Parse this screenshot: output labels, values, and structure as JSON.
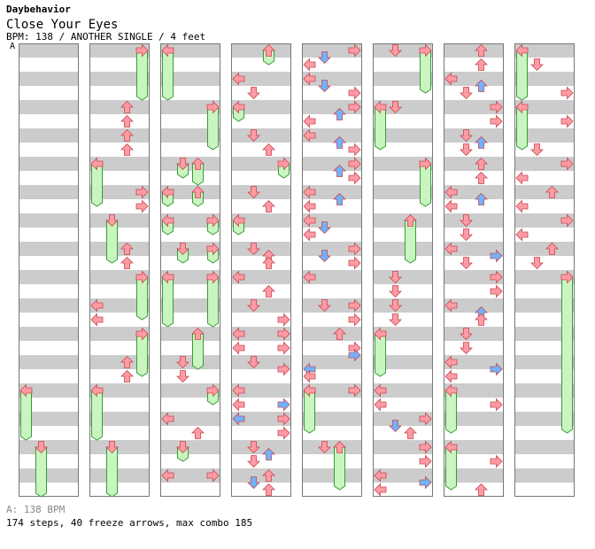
{
  "header": {
    "artist": "Daybehavior",
    "title": "Close Your Eyes",
    "info": "BPM: 138 / ANOTHER SINGLE / 4 feet",
    "marker": "A"
  },
  "footer": {
    "bpm": "A: 138 BPM",
    "stats": "174 steps, 40 freeze arrows, max combo 185"
  },
  "chart_data": {
    "type": "table",
    "lanes": [
      "left",
      "down",
      "up",
      "right"
    ],
    "beats_per_column": 32,
    "colors": {
      "quarter_note": "#ff9ba5",
      "sixteenth_note": "#6fb3ff",
      "freeze": "#c8f5c0",
      "stripe": "#cccccc"
    },
    "columns": [
      {
        "notes": [
          {
            "lane": 0,
            "beat": 24,
            "kind": "freeze",
            "end": 28
          },
          {
            "lane": 1,
            "beat": 28,
            "kind": "freeze",
            "end": 32
          }
        ]
      },
      {
        "notes": [
          {
            "lane": 3,
            "beat": 0,
            "kind": "freeze",
            "end": 4
          },
          {
            "lane": 2,
            "beat": 4
          },
          {
            "lane": 2,
            "beat": 5
          },
          {
            "lane": 2,
            "beat": 6
          },
          {
            "lane": 2,
            "beat": 7
          },
          {
            "lane": 0,
            "beat": 8,
            "kind": "freeze",
            "end": 11.5
          },
          {
            "lane": 3,
            "beat": 10
          },
          {
            "lane": 3,
            "beat": 11
          },
          {
            "lane": 1,
            "beat": 12,
            "kind": "freeze",
            "end": 15.5
          },
          {
            "lane": 2,
            "beat": 14
          },
          {
            "lane": 2,
            "beat": 15
          },
          {
            "lane": 3,
            "beat": 16,
            "kind": "freeze",
            "end": 19.5
          },
          {
            "lane": 0,
            "beat": 18
          },
          {
            "lane": 0,
            "beat": 19
          },
          {
            "lane": 3,
            "beat": 20,
            "kind": "freeze",
            "end": 23.5
          },
          {
            "lane": 2,
            "beat": 22
          },
          {
            "lane": 2,
            "beat": 23
          },
          {
            "lane": 0,
            "beat": 24,
            "kind": "freeze",
            "end": 28
          },
          {
            "lane": 1,
            "beat": 28,
            "kind": "freeze",
            "end": 32
          }
        ]
      },
      {
        "notes": [
          {
            "lane": 0,
            "beat": 0,
            "kind": "freeze",
            "end": 4
          },
          {
            "lane": 3,
            "beat": 4,
            "kind": "freeze",
            "end": 7.5
          },
          {
            "lane": 1,
            "beat": 8,
            "kind": "freeze",
            "end": 9.5
          },
          {
            "lane": 2,
            "beat": 8,
            "kind": "freeze",
            "end": 10
          },
          {
            "lane": 0,
            "beat": 10,
            "kind": "freeze",
            "end": 11.5
          },
          {
            "lane": 2,
            "beat": 10,
            "kind": "freeze",
            "end": 11.5
          },
          {
            "lane": 0,
            "beat": 12,
            "kind": "freeze",
            "end": 13.5
          },
          {
            "lane": 3,
            "beat": 12,
            "kind": "freeze",
            "end": 13.5
          },
          {
            "lane": 1,
            "beat": 14,
            "kind": "freeze",
            "end": 15.5
          },
          {
            "lane": 3,
            "beat": 14,
            "kind": "freeze",
            "end": 15.5
          },
          {
            "lane": 0,
            "beat": 16,
            "kind": "freeze",
            "end": 20
          },
          {
            "lane": 3,
            "beat": 16,
            "kind": "freeze",
            "end": 20
          },
          {
            "lane": 2,
            "beat": 20,
            "kind": "freeze",
            "end": 23
          },
          {
            "lane": 1,
            "beat": 22
          },
          {
            "lane": 1,
            "beat": 23
          },
          {
            "lane": 3,
            "beat": 24,
            "kind": "freeze",
            "end": 25.5
          },
          {
            "lane": 0,
            "beat": 26
          },
          {
            "lane": 2,
            "beat": 27
          },
          {
            "lane": 1,
            "beat": 28,
            "kind": "freeze",
            "end": 29.5
          },
          {
            "lane": 0,
            "beat": 30
          },
          {
            "lane": 3,
            "beat": 30
          }
        ]
      },
      {
        "notes": [
          {
            "lane": 2,
            "beat": 0,
            "kind": "freeze",
            "end": 1.5
          },
          {
            "lane": 0,
            "beat": 2
          },
          {
            "lane": 1,
            "beat": 3
          },
          {
            "lane": 0,
            "beat": 4,
            "kind": "freeze",
            "end": 5.5
          },
          {
            "lane": 1,
            "beat": 6
          },
          {
            "lane": 2,
            "beat": 7
          },
          {
            "lane": 3,
            "beat": 8,
            "kind": "freeze",
            "end": 9.5
          },
          {
            "lane": 1,
            "beat": 10
          },
          {
            "lane": 2,
            "beat": 11
          },
          {
            "lane": 0,
            "beat": 12,
            "kind": "freeze",
            "end": 13.5
          },
          {
            "lane": 1,
            "beat": 14
          },
          {
            "lane": 2,
            "beat": 14.5
          },
          {
            "lane": 2,
            "beat": 15
          },
          {
            "lane": 0,
            "beat": 16
          },
          {
            "lane": 2,
            "beat": 17
          },
          {
            "lane": 1,
            "beat": 18
          },
          {
            "lane": 3,
            "beat": 19
          },
          {
            "lane": 0,
            "beat": 20
          },
          {
            "lane": 3,
            "beat": 20
          },
          {
            "lane": 0,
            "beat": 21
          },
          {
            "lane": 3,
            "beat": 21
          },
          {
            "lane": 1,
            "beat": 22
          },
          {
            "lane": 3,
            "beat": 22.5
          },
          {
            "lane": 0,
            "beat": 24
          },
          {
            "lane": 0,
            "beat": 25
          },
          {
            "lane": 3,
            "beat": 25,
            "sub": "16th"
          },
          {
            "lane": 0,
            "beat": 26,
            "sub": "16th"
          },
          {
            "lane": 3,
            "beat": 26
          },
          {
            "lane": 3,
            "beat": 27
          },
          {
            "lane": 1,
            "beat": 28
          },
          {
            "lane": 2,
            "beat": 28.5,
            "sub": "16th"
          },
          {
            "lane": 1,
            "beat": 29
          },
          {
            "lane": 2,
            "beat": 30
          },
          {
            "lane": 1,
            "beat": 30.5,
            "sub": "16th"
          },
          {
            "lane": 2,
            "beat": 31
          }
        ]
      },
      {
        "notes": [
          {
            "lane": 3,
            "beat": 0
          },
          {
            "lane": 1,
            "beat": 0.5,
            "sub": "16th"
          },
          {
            "lane": 0,
            "beat": 1
          },
          {
            "lane": 0,
            "beat": 2
          },
          {
            "lane": 1,
            "beat": 2.5,
            "sub": "16th"
          },
          {
            "lane": 3,
            "beat": 3
          },
          {
            "lane": 3,
            "beat": 4
          },
          {
            "lane": 2,
            "beat": 4.5,
            "sub": "16th"
          },
          {
            "lane": 0,
            "beat": 5
          },
          {
            "lane": 0,
            "beat": 6
          },
          {
            "lane": 2,
            "beat": 6.5,
            "sub": "16th"
          },
          {
            "lane": 3,
            "beat": 7
          },
          {
            "lane": 3,
            "beat": 8
          },
          {
            "lane": 2,
            "beat": 8.5,
            "sub": "16th"
          },
          {
            "lane": 3,
            "beat": 9
          },
          {
            "lane": 0,
            "beat": 10
          },
          {
            "lane": 2,
            "beat": 10.5,
            "sub": "16th"
          },
          {
            "lane": 0,
            "beat": 11
          },
          {
            "lane": 0,
            "beat": 12
          },
          {
            "lane": 1,
            "beat": 12.5,
            "sub": "16th"
          },
          {
            "lane": 0,
            "beat": 13
          },
          {
            "lane": 3,
            "beat": 14
          },
          {
            "lane": 1,
            "beat": 14.5,
            "sub": "16th"
          },
          {
            "lane": 3,
            "beat": 15
          },
          {
            "lane": 0,
            "beat": 16
          },
          {
            "lane": 1,
            "beat": 18
          },
          {
            "lane": 3,
            "beat": 18
          },
          {
            "lane": 3,
            "beat": 19
          },
          {
            "lane": 2,
            "beat": 20
          },
          {
            "lane": 3,
            "beat": 21
          },
          {
            "lane": 3,
            "beat": 21.5,
            "sub": "16th"
          },
          {
            "lane": 0,
            "beat": 22.5,
            "sub": "16th"
          },
          {
            "lane": 0,
            "beat": 23
          },
          {
            "lane": 0,
            "beat": 24,
            "kind": "freeze",
            "end": 27.5
          },
          {
            "lane": 3,
            "beat": 24
          },
          {
            "lane": 1,
            "beat": 28
          },
          {
            "lane": 2,
            "beat": 28,
            "kind": "freeze",
            "end": 31.5
          }
        ]
      },
      {
        "notes": [
          {
            "lane": 1,
            "beat": 0
          },
          {
            "lane": 3,
            "beat": 0,
            "kind": "freeze",
            "end": 3.5
          },
          {
            "lane": 0,
            "beat": 4,
            "kind": "freeze",
            "end": 7.5
          },
          {
            "lane": 1,
            "beat": 4
          },
          {
            "lane": 3,
            "beat": 8,
            "kind": "freeze",
            "end": 11.5
          },
          {
            "lane": 2,
            "beat": 12,
            "kind": "freeze",
            "end": 15.5
          },
          {
            "lane": 1,
            "beat": 16
          },
          {
            "lane": 1,
            "beat": 17
          },
          {
            "lane": 1,
            "beat": 18
          },
          {
            "lane": 1,
            "beat": 19
          },
          {
            "lane": 0,
            "beat": 20,
            "kind": "freeze",
            "end": 23.5
          },
          {
            "lane": 0,
            "beat": 24
          },
          {
            "lane": 0,
            "beat": 25
          },
          {
            "lane": 3,
            "beat": 26
          },
          {
            "lane": 1,
            "beat": 26.5,
            "sub": "16th"
          },
          {
            "lane": 2,
            "beat": 27
          },
          {
            "lane": 3,
            "beat": 28
          },
          {
            "lane": 3,
            "beat": 29
          },
          {
            "lane": 0,
            "beat": 30
          },
          {
            "lane": 3,
            "beat": 30.5,
            "sub": "16th"
          },
          {
            "lane": 0,
            "beat": 31
          }
        ]
      },
      {
        "notes": [
          {
            "lane": 2,
            "beat": 0
          },
          {
            "lane": 2,
            "beat": 1
          },
          {
            "lane": 0,
            "beat": 2
          },
          {
            "lane": 2,
            "beat": 2.5,
            "sub": "16th"
          },
          {
            "lane": 1,
            "beat": 3
          },
          {
            "lane": 3,
            "beat": 4
          },
          {
            "lane": 3,
            "beat": 5
          },
          {
            "lane": 1,
            "beat": 6
          },
          {
            "lane": 2,
            "beat": 6.5,
            "sub": "16th"
          },
          {
            "lane": 1,
            "beat": 7
          },
          {
            "lane": 2,
            "beat": 8
          },
          {
            "lane": 2,
            "beat": 9
          },
          {
            "lane": 0,
            "beat": 10
          },
          {
            "lane": 2,
            "beat": 10.5,
            "sub": "16th"
          },
          {
            "lane": 0,
            "beat": 11
          },
          {
            "lane": 1,
            "beat": 12
          },
          {
            "lane": 1,
            "beat": 13
          },
          {
            "lane": 0,
            "beat": 14
          },
          {
            "lane": 3,
            "beat": 14.5,
            "sub": "16th"
          },
          {
            "lane": 1,
            "beat": 15
          },
          {
            "lane": 3,
            "beat": 16
          },
          {
            "lane": 3,
            "beat": 17
          },
          {
            "lane": 0,
            "beat": 18
          },
          {
            "lane": 2,
            "beat": 18.5,
            "sub": "16th"
          },
          {
            "lane": 2,
            "beat": 19
          },
          {
            "lane": 1,
            "beat": 20
          },
          {
            "lane": 1,
            "beat": 21
          },
          {
            "lane": 0,
            "beat": 22
          },
          {
            "lane": 3,
            "beat": 22.5,
            "sub": "16th"
          },
          {
            "lane": 0,
            "beat": 23
          },
          {
            "lane": 0,
            "beat": 24,
            "kind": "freeze",
            "end": 27.5
          },
          {
            "lane": 3,
            "beat": 25
          },
          {
            "lane": 0,
            "beat": 28,
            "kind": "freeze",
            "end": 31.5
          },
          {
            "lane": 3,
            "beat": 29
          },
          {
            "lane": 2,
            "beat": 31
          }
        ]
      },
      {
        "notes": [
          {
            "lane": 0,
            "beat": 0,
            "kind": "freeze",
            "end": 4
          },
          {
            "lane": 1,
            "beat": 1
          },
          {
            "lane": 3,
            "beat": 3
          },
          {
            "lane": 0,
            "beat": 4,
            "kind": "freeze",
            "end": 7.5
          },
          {
            "lane": 3,
            "beat": 5
          },
          {
            "lane": 1,
            "beat": 7
          },
          {
            "lane": 3,
            "beat": 8
          },
          {
            "lane": 0,
            "beat": 9
          },
          {
            "lane": 2,
            "beat": 10
          },
          {
            "lane": 0,
            "beat": 11
          },
          {
            "lane": 3,
            "beat": 12
          },
          {
            "lane": 0,
            "beat": 13
          },
          {
            "lane": 2,
            "beat": 14
          },
          {
            "lane": 1,
            "beat": 15
          },
          {
            "lane": 3,
            "beat": 16,
            "kind": "freeze",
            "end": 27.5
          }
        ]
      }
    ]
  }
}
